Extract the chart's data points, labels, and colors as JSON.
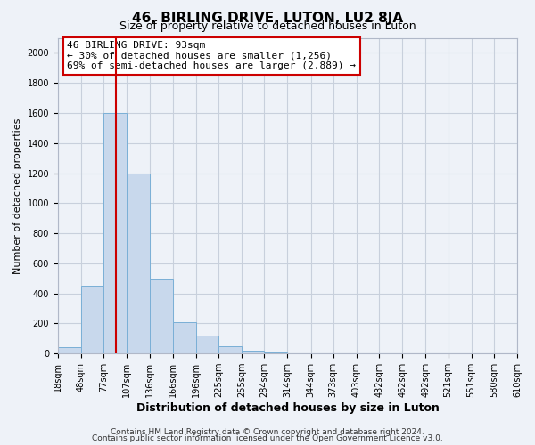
{
  "title": "46, BIRLING DRIVE, LUTON, LU2 8JA",
  "subtitle": "Size of property relative to detached houses in Luton",
  "xlabel": "Distribution of detached houses by size in Luton",
  "ylabel": "Number of detached properties",
  "bar_edges": [
    18,
    48,
    77,
    107,
    136,
    166,
    196,
    225,
    255,
    284,
    314,
    344,
    373,
    403,
    432,
    462,
    492,
    521,
    551,
    580,
    610
  ],
  "bar_heights": [
    40,
    450,
    1600,
    1200,
    490,
    210,
    120,
    50,
    20,
    10,
    0,
    0,
    0,
    0,
    0,
    0,
    0,
    0,
    0,
    0
  ],
  "bar_color": "#c8d8ec",
  "bar_edgecolor": "#7aafd6",
  "vline_x": 93,
  "vline_color": "#cc0000",
  "annotation_title": "46 BIRLING DRIVE: 93sqm",
  "annotation_line1": "← 30% of detached houses are smaller (1,256)",
  "annotation_line2": "69% of semi-detached houses are larger (2,889) →",
  "annotation_box_color": "#ffffff",
  "annotation_box_edgecolor": "#cc0000",
  "ylim": [
    0,
    2100
  ],
  "yticks": [
    0,
    200,
    400,
    600,
    800,
    1000,
    1200,
    1400,
    1600,
    1800,
    2000
  ],
  "tick_labels": [
    "18sqm",
    "48sqm",
    "77sqm",
    "107sqm",
    "136sqm",
    "166sqm",
    "196sqm",
    "225sqm",
    "255sqm",
    "284sqm",
    "314sqm",
    "344sqm",
    "373sqm",
    "403sqm",
    "432sqm",
    "462sqm",
    "492sqm",
    "521sqm",
    "551sqm",
    "580sqm",
    "610sqm"
  ],
  "grid_color": "#c8d0dc",
  "bg_color": "#eef2f8",
  "footer1": "Contains HM Land Registry data © Crown copyright and database right 2024.",
  "footer2": "Contains public sector information licensed under the Open Government Licence v3.0.",
  "title_fontsize": 11,
  "subtitle_fontsize": 9,
  "xlabel_fontsize": 9,
  "ylabel_fontsize": 8,
  "tick_fontsize": 7,
  "footer_fontsize": 6.5
}
